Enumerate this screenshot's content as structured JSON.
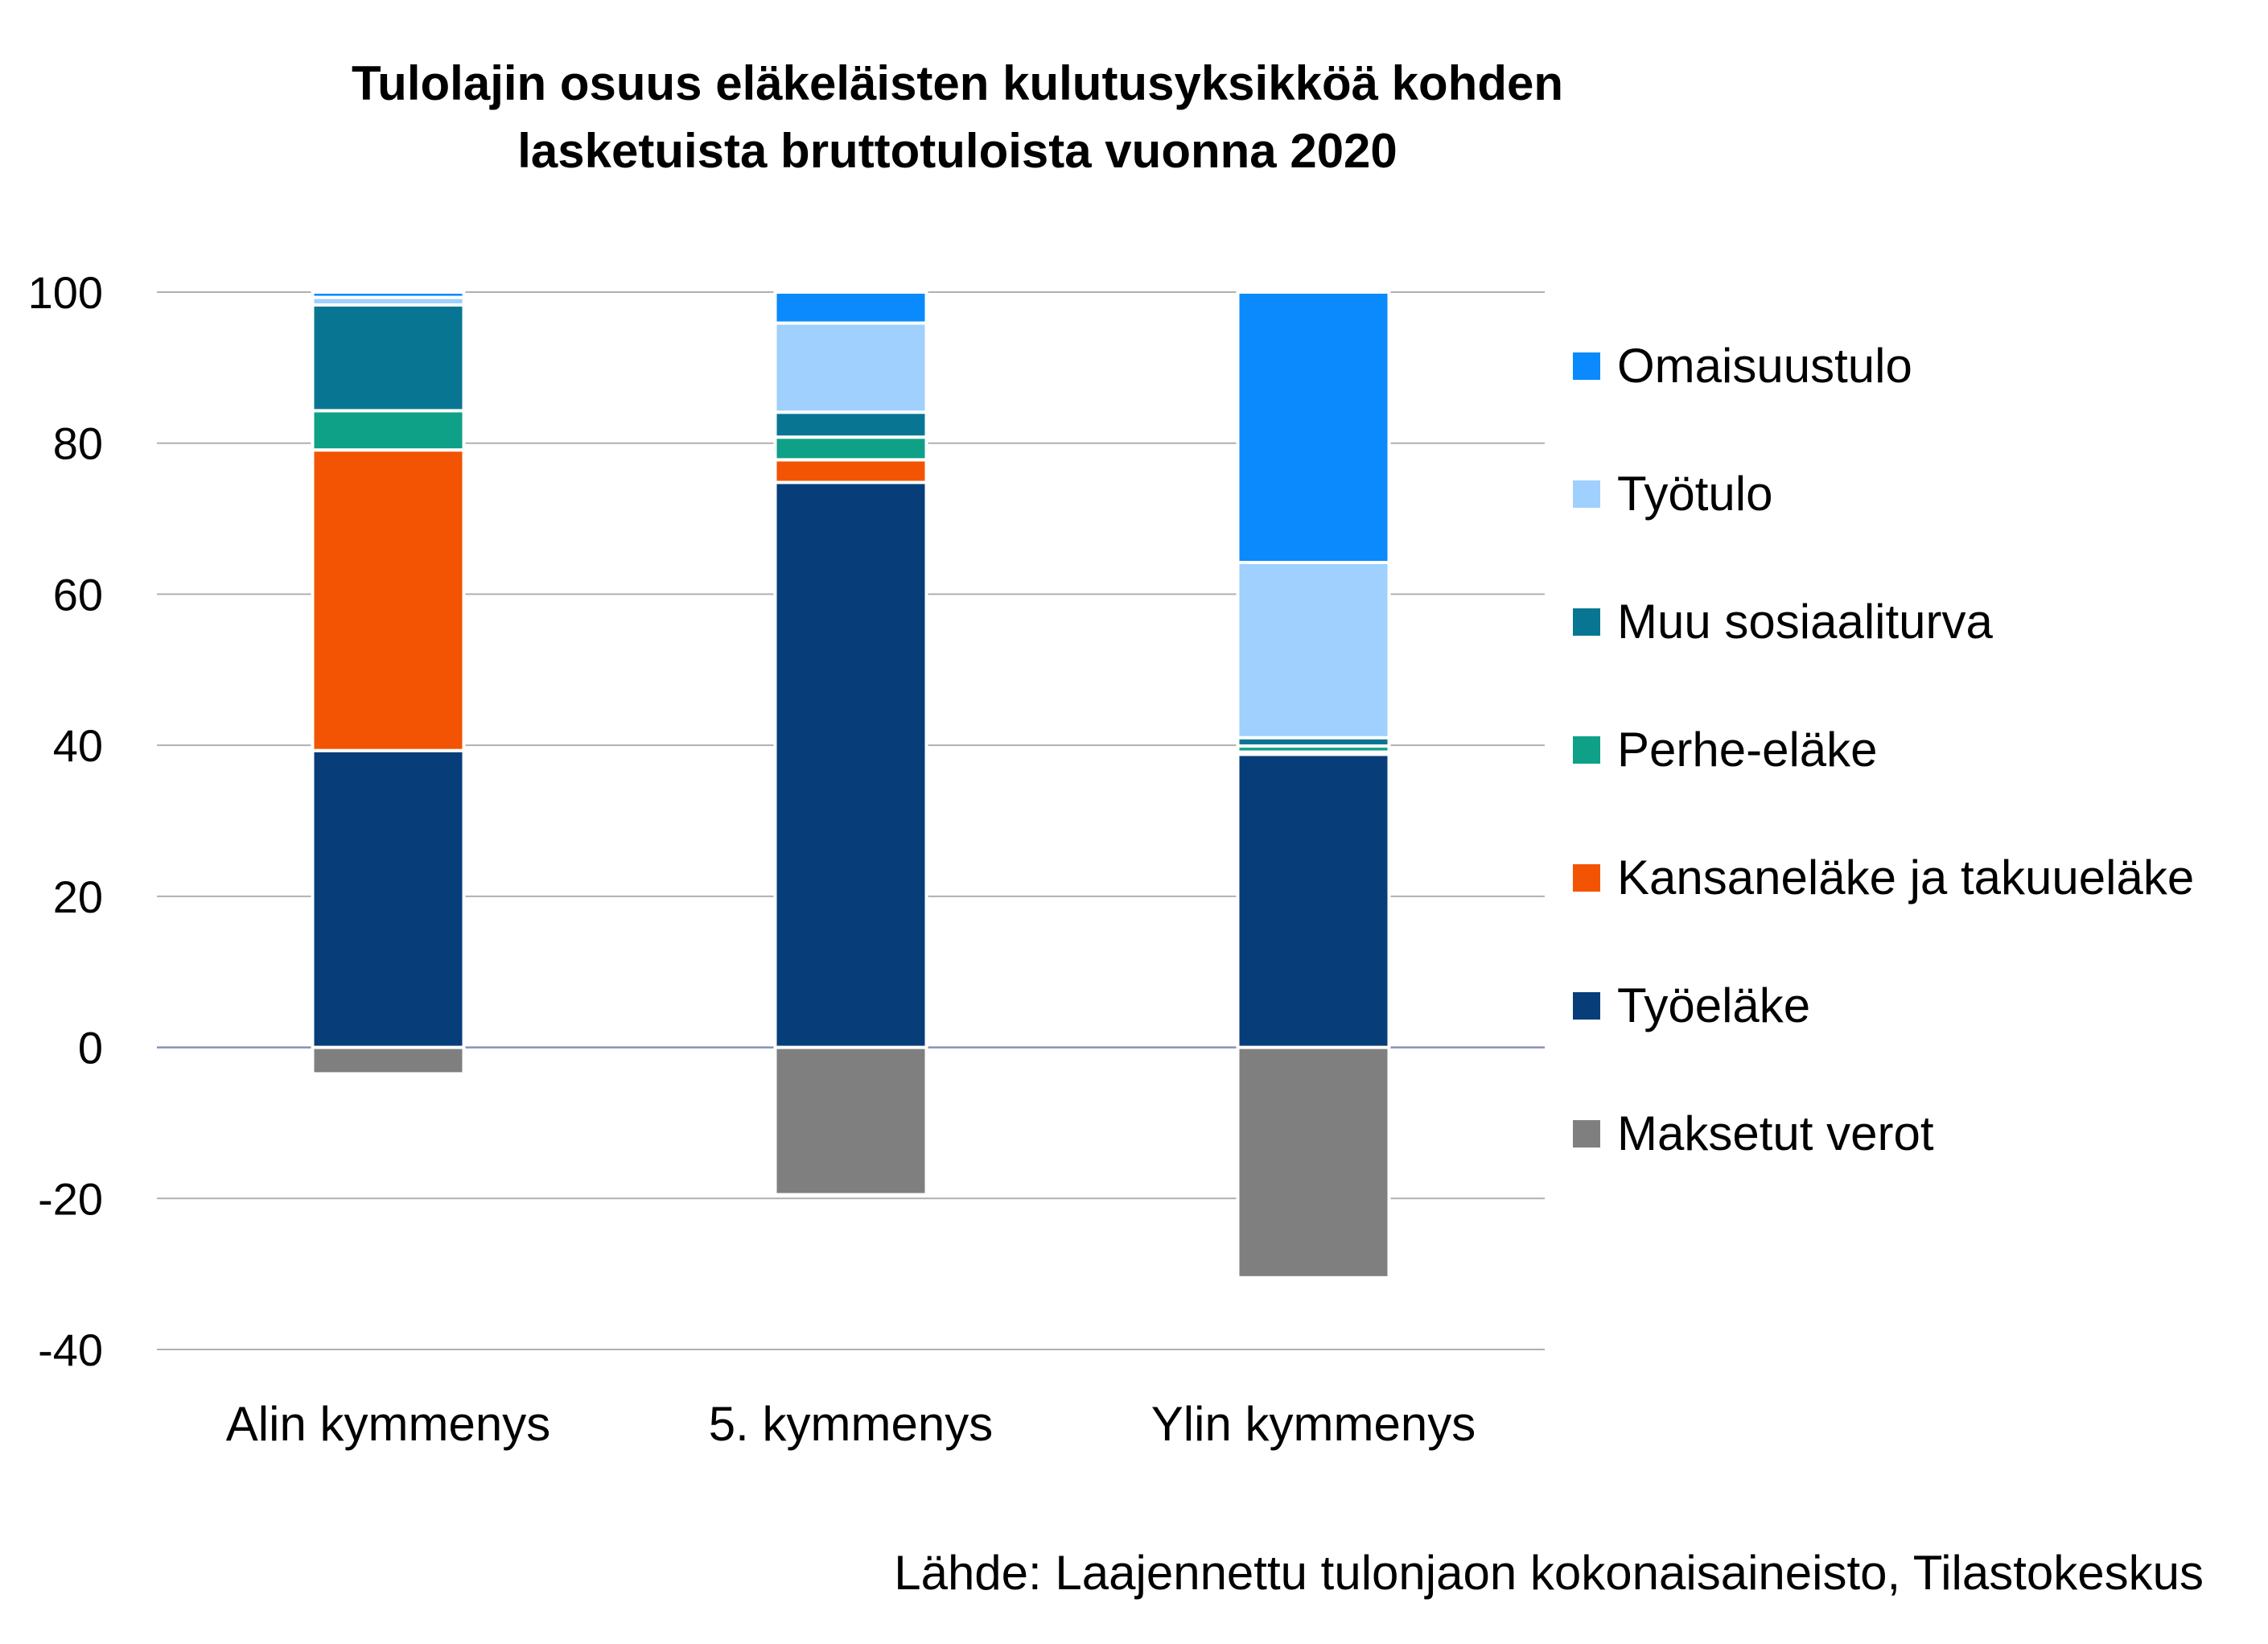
{
  "chart_data": {
    "type": "bar",
    "stacked": true,
    "title": [
      "Tulolajin osuus eläkeläisten kulutusyksikköä kohden",
      "lasketuista bruttotuloista vuonna 2020"
    ],
    "xlabel": "",
    "ylabel": "",
    "ylim": [
      -40,
      100
    ],
    "yticks": [
      100,
      80,
      60,
      40,
      20,
      0,
      -20,
      -40
    ],
    "grid": true,
    "legend_position": "right",
    "categories": [
      "Alin kymmenys",
      "5. kymmenys",
      "Ylin kymmenys"
    ],
    "series": [
      {
        "name": "Maksetut verot",
        "color": "#7f7f7f",
        "values": [
          -3.5,
          -19.5,
          -30.5
        ]
      },
      {
        "name": "Työeläke",
        "color": "#073e7a",
        "values": [
          39.3,
          74.8,
          38.8
        ]
      },
      {
        "name": "Kansaneläke ja takuueläke",
        "color": "#f25403",
        "values": [
          39.8,
          3.0,
          0.3
        ]
      },
      {
        "name": "Perhe-eläke",
        "color": "#0ea187",
        "values": [
          5.2,
          3.0,
          0.8
        ]
      },
      {
        "name": "Muu sosiaaliturva",
        "color": "#087693",
        "values": [
          14.0,
          3.3,
          1.1
        ]
      },
      {
        "name": "Työtulo",
        "color": "#9fd0fe",
        "values": [
          1.0,
          11.8,
          23.2
        ]
      },
      {
        "name": "Omaisuustulo",
        "color": "#0a8afc",
        "values": [
          0.7,
          4.1,
          35.8
        ]
      }
    ]
  },
  "legend_order": [
    "Omaisuustulo",
    "Työtulo",
    "Muu sosiaaliturva",
    "Perhe-eläke",
    "Kansaneläke ja takuueläke",
    "Työeläke",
    "Maksetut verot"
  ],
  "source": "Lähde: Laajennettu tulonjaon kokonaisaineisto, Tilastokeskus"
}
